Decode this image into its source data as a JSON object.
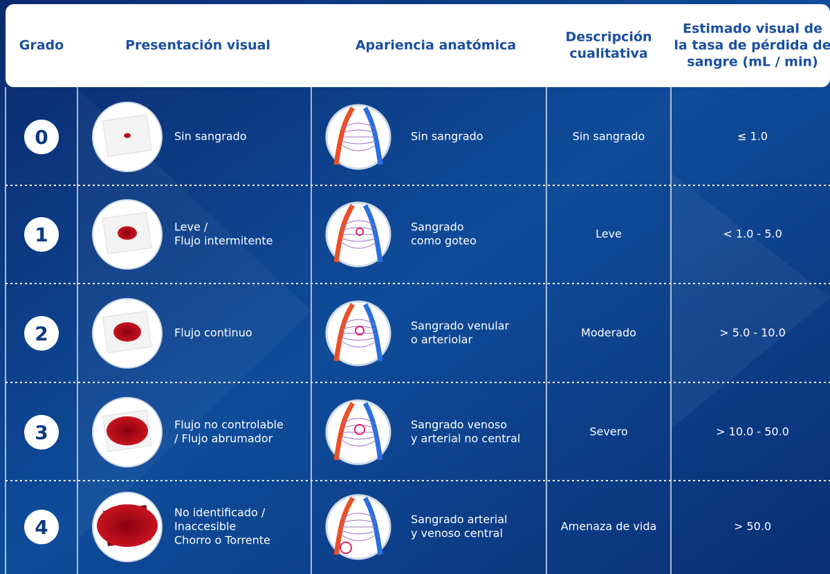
{
  "header": [
    "Grado",
    "Presentación visual",
    "Apariencia anatómica",
    [
      "Descripción",
      "cualitativa"
    ],
    [
      "Estimado visual de",
      "la tasa de pérdida de",
      "sangre (mL / min)"
    ]
  ],
  "rows": [
    {
      "grade": "0",
      "visual": [
        "Sin sangrado"
      ],
      "anatomy": [
        "Sin sangrado"
      ],
      "description": "Sin sangrado",
      "estimate": "≤ 1.0"
    },
    {
      "grade": "1",
      "visual": [
        "Leve /",
        "Flujo intermitente"
      ],
      "anatomy": [
        "Sangrado",
        "como goteo"
      ],
      "description": "Leve",
      "estimate": "< 1.0 - 5.0"
    },
    {
      "grade": "2",
      "visual": [
        "Flujo continuo"
      ],
      "anatomy": [
        "Sangrado venular",
        "o arteriolar"
      ],
      "description": "Moderado",
      "estimate": "> 5.0 - 10.0"
    },
    {
      "grade": "3",
      "visual": [
        "Flujo no controlable",
        "/ Flujo abrumador"
      ],
      "anatomy": [
        "Sangrado venoso",
        "y arterial no central"
      ],
      "description": "Severo",
      "estimate": "> 10.0 - 50.0"
    },
    {
      "grade": "4",
      "visual": [
        "No identificado /",
        "Inaccesible",
        "Chorro o Torrente"
      ],
      "anatomy": [
        "Sangrado arterial",
        "y venoso central"
      ],
      "description": "Amenaza de vida",
      "estimate": "> 50.0"
    }
  ]
}
